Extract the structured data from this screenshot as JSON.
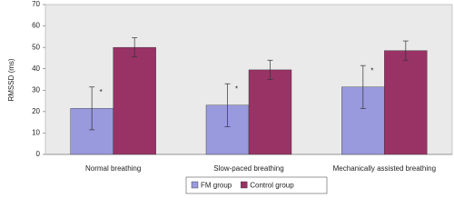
{
  "chart_data": {
    "type": "bar",
    "y_label": "RMSSD (ms)",
    "categories": [
      "Normal breathing",
      "Slow-paced breathing",
      "Mechanically assisted breathing"
    ],
    "series": [
      {
        "name": "FM group",
        "color": "#9999dd",
        "values": [
          21.5,
          23,
          31.5
        ],
        "errors": [
          10,
          10,
          10
        ]
      },
      {
        "name": "Control group",
        "color": "#993366",
        "values": [
          50,
          39.5,
          48.5
        ],
        "errors": [
          4.5,
          4.5,
          4.5
        ]
      }
    ],
    "significance_marks": [
      "*",
      "*",
      "*"
    ],
    "ylim": [
      0,
      70
    ],
    "yticks": [
      0,
      10,
      20,
      30,
      40,
      50,
      60,
      70
    ],
    "legend": "bottom"
  }
}
